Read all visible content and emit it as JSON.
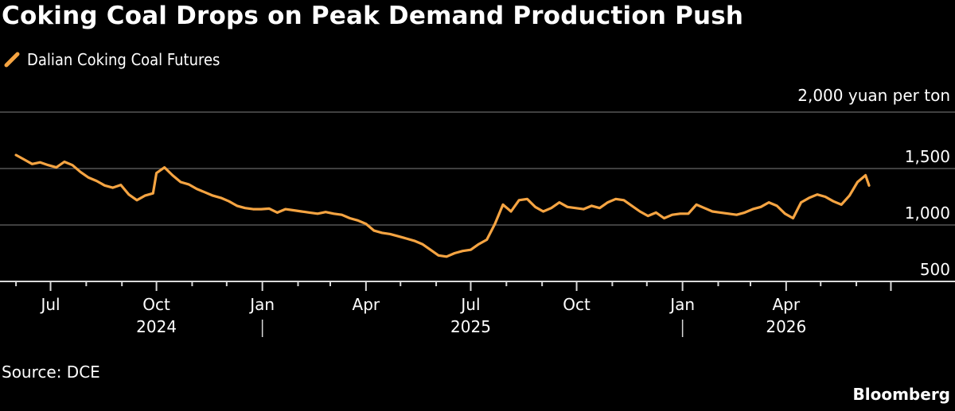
{
  "title": "Coking Coal Drops on Peak Demand Production Push",
  "source": "Source: DCE",
  "brand": "Bloomberg",
  "colors": {
    "background": "#000000",
    "line": "#f5a442",
    "grid": "#555555",
    "text": "#ffffff"
  },
  "chart_data": {
    "type": "line",
    "title": "Coking Coal Drops on Peak Demand Production Push",
    "unit_label": "2,000 yuan per ton",
    "series": [
      {
        "name": "Dalian Coking Coal Futures",
        "color": "#f5a442",
        "points": [
          [
            "2024-06-01",
            1620
          ],
          [
            "2024-06-08",
            1580
          ],
          [
            "2024-06-15",
            1540
          ],
          [
            "2024-06-22",
            1555
          ],
          [
            "2024-06-29",
            1530
          ],
          [
            "2024-07-06",
            1510
          ],
          [
            "2024-07-13",
            1560
          ],
          [
            "2024-07-20",
            1530
          ],
          [
            "2024-07-27",
            1470
          ],
          [
            "2024-08-03",
            1420
          ],
          [
            "2024-08-10",
            1390
          ],
          [
            "2024-08-17",
            1350
          ],
          [
            "2024-08-24",
            1330
          ],
          [
            "2024-08-31",
            1355
          ],
          [
            "2024-09-07",
            1270
          ],
          [
            "2024-09-14",
            1220
          ],
          [
            "2024-09-21",
            1260
          ],
          [
            "2024-09-28",
            1280
          ],
          [
            "2024-10-01",
            1460
          ],
          [
            "2024-10-08",
            1510
          ],
          [
            "2024-10-15",
            1440
          ],
          [
            "2024-10-22",
            1380
          ],
          [
            "2024-10-29",
            1360
          ],
          [
            "2024-11-05",
            1320
          ],
          [
            "2024-11-12",
            1290
          ],
          [
            "2024-11-19",
            1260
          ],
          [
            "2024-11-26",
            1240
          ],
          [
            "2024-12-03",
            1210
          ],
          [
            "2024-12-10",
            1170
          ],
          [
            "2024-12-17",
            1150
          ],
          [
            "2024-12-24",
            1140
          ],
          [
            "2024-12-31",
            1140
          ],
          [
            "2025-01-07",
            1145
          ],
          [
            "2025-01-14",
            1110
          ],
          [
            "2025-01-21",
            1140
          ],
          [
            "2025-01-28",
            1130
          ],
          [
            "2025-02-04",
            1120
          ],
          [
            "2025-02-11",
            1110
          ],
          [
            "2025-02-18",
            1100
          ],
          [
            "2025-02-25",
            1115
          ],
          [
            "2025-03-04",
            1100
          ],
          [
            "2025-03-11",
            1090
          ],
          [
            "2025-03-18",
            1060
          ],
          [
            "2025-03-25",
            1040
          ],
          [
            "2025-04-01",
            1010
          ],
          [
            "2025-04-08",
            950
          ],
          [
            "2025-04-15",
            930
          ],
          [
            "2025-04-22",
            920
          ],
          [
            "2025-04-29",
            900
          ],
          [
            "2025-05-06",
            880
          ],
          [
            "2025-05-13",
            860
          ],
          [
            "2025-05-20",
            830
          ],
          [
            "2025-05-27",
            780
          ],
          [
            "2025-06-03",
            730
          ],
          [
            "2025-06-10",
            720
          ],
          [
            "2025-06-17",
            750
          ],
          [
            "2025-06-24",
            770
          ],
          [
            "2025-07-01",
            780
          ],
          [
            "2025-07-08",
            830
          ],
          [
            "2025-07-15",
            870
          ],
          [
            "2025-07-22",
            1010
          ],
          [
            "2025-07-29",
            1180
          ],
          [
            "2025-08-05",
            1120
          ],
          [
            "2025-08-12",
            1220
          ],
          [
            "2025-08-19",
            1230
          ],
          [
            "2025-08-26",
            1160
          ],
          [
            "2025-09-02",
            1120
          ],
          [
            "2025-09-09",
            1150
          ],
          [
            "2025-09-16",
            1200
          ],
          [
            "2025-09-23",
            1160
          ],
          [
            "2025-09-30",
            1150
          ],
          [
            "2025-10-07",
            1140
          ],
          [
            "2025-10-14",
            1170
          ],
          [
            "2025-10-21",
            1150
          ],
          [
            "2025-10-28",
            1200
          ],
          [
            "2025-11-04",
            1230
          ],
          [
            "2025-11-11",
            1220
          ],
          [
            "2025-11-18",
            1170
          ],
          [
            "2025-11-25",
            1120
          ],
          [
            "2025-12-02",
            1080
          ],
          [
            "2025-12-09",
            1110
          ],
          [
            "2025-12-16",
            1060
          ],
          [
            "2025-12-23",
            1090
          ],
          [
            "2025-12-30",
            1100
          ],
          [
            "2026-01-06",
            1100
          ],
          [
            "2026-01-13",
            1180
          ],
          [
            "2026-01-20",
            1150
          ],
          [
            "2026-01-27",
            1120
          ],
          [
            "2026-02-03",
            1110
          ],
          [
            "2026-02-10",
            1100
          ],
          [
            "2026-02-17",
            1090
          ],
          [
            "2026-02-24",
            1110
          ],
          [
            "2026-03-03",
            1140
          ],
          [
            "2026-03-10",
            1160
          ],
          [
            "2026-03-17",
            1200
          ],
          [
            "2026-03-24",
            1170
          ],
          [
            "2026-03-31",
            1100
          ],
          [
            "2026-04-07",
            1060
          ],
          [
            "2026-04-14",
            1200
          ],
          [
            "2026-04-21",
            1240
          ],
          [
            "2026-04-28",
            1270
          ],
          [
            "2026-05-05",
            1250
          ],
          [
            "2026-05-12",
            1210
          ],
          [
            "2026-05-19",
            1180
          ],
          [
            "2026-05-26",
            1260
          ],
          [
            "2026-06-02",
            1380
          ],
          [
            "2026-06-09",
            1440
          ],
          [
            "2026-06-12",
            1350
          ]
        ]
      }
    ],
    "y_axis": {
      "ticks": [
        500,
        1000,
        1500,
        2000
      ],
      "tick_labels": [
        "500",
        "1,000",
        "1,500",
        "2,000"
      ],
      "ylim": [
        350,
        2050
      ],
      "position": "right",
      "grid": true
    },
    "x_axis": {
      "xlim": [
        "2024-05-25",
        "2026-06-30"
      ],
      "month_labels": [
        {
          "date": "2024-07-01",
          "label": "Jul"
        },
        {
          "date": "2024-10-01",
          "label": "Oct"
        },
        {
          "date": "2025-01-01",
          "label": "Jan"
        },
        {
          "date": "2025-04-01",
          "label": "Apr"
        },
        {
          "date": "2025-07-01",
          "label": "Jul"
        },
        {
          "date": "2025-10-01",
          "label": "Oct"
        },
        {
          "date": "2026-01-01",
          "label": "Jan"
        },
        {
          "date": "2026-04-01",
          "label": "Apr"
        }
      ],
      "year_labels": [
        {
          "date": "2024-10-01",
          "label": "2024"
        },
        {
          "date": "2025-07-01",
          "label": "2025"
        },
        {
          "date": "2026-04-01",
          "label": "2026"
        }
      ],
      "year_separators": [
        "2025-01-01",
        "2026-01-01"
      ]
    }
  }
}
